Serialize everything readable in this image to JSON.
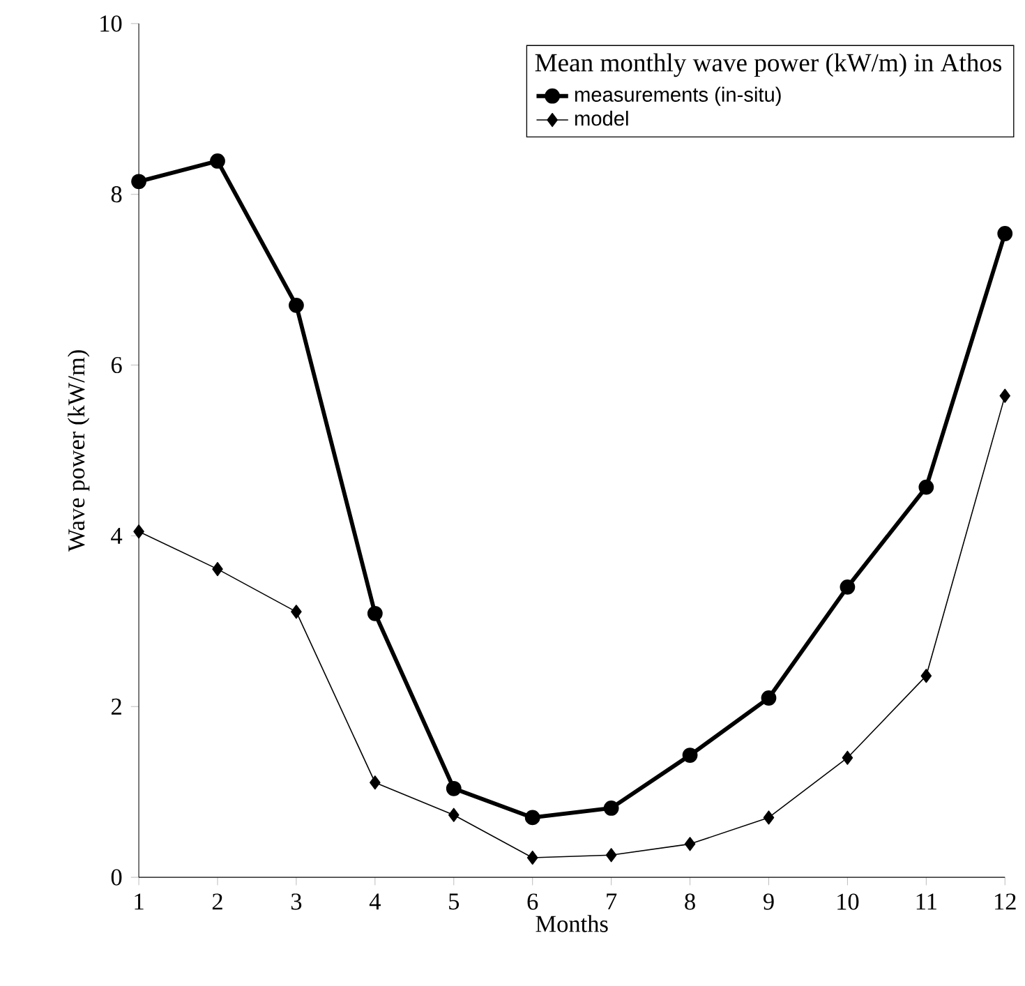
{
  "chart_data": {
    "type": "line",
    "legend_title": "Mean monthly wave power (kW/m) in Athos",
    "xlabel": "Months",
    "ylabel": "Wave power (kW/m)",
    "x": [
      1,
      2,
      3,
      4,
      5,
      6,
      7,
      8,
      9,
      10,
      11,
      12
    ],
    "series": [
      {
        "name": "measurements (in-situ)",
        "color": "#000000",
        "marker": "circle",
        "values": [
          8.15,
          8.39,
          6.7,
          3.09,
          1.04,
          0.7,
          0.81,
          1.43,
          2.1,
          3.4,
          4.57,
          7.54
        ]
      },
      {
        "name": "model",
        "color": "#000000",
        "marker": "diamond",
        "values": [
          4.05,
          3.61,
          3.11,
          1.11,
          0.73,
          0.23,
          0.26,
          0.39,
          0.7,
          1.4,
          2.36,
          5.64
        ]
      }
    ],
    "xlim": [
      1,
      12
    ],
    "xticks": [
      1,
      2,
      3,
      4,
      5,
      6,
      7,
      8,
      9,
      10,
      11,
      12
    ],
    "ylim": [
      0,
      10
    ],
    "yticks": [
      0,
      2,
      4,
      6,
      8,
      10
    ],
    "grid": false,
    "legend": "top right",
    "line_style": "solid"
  }
}
